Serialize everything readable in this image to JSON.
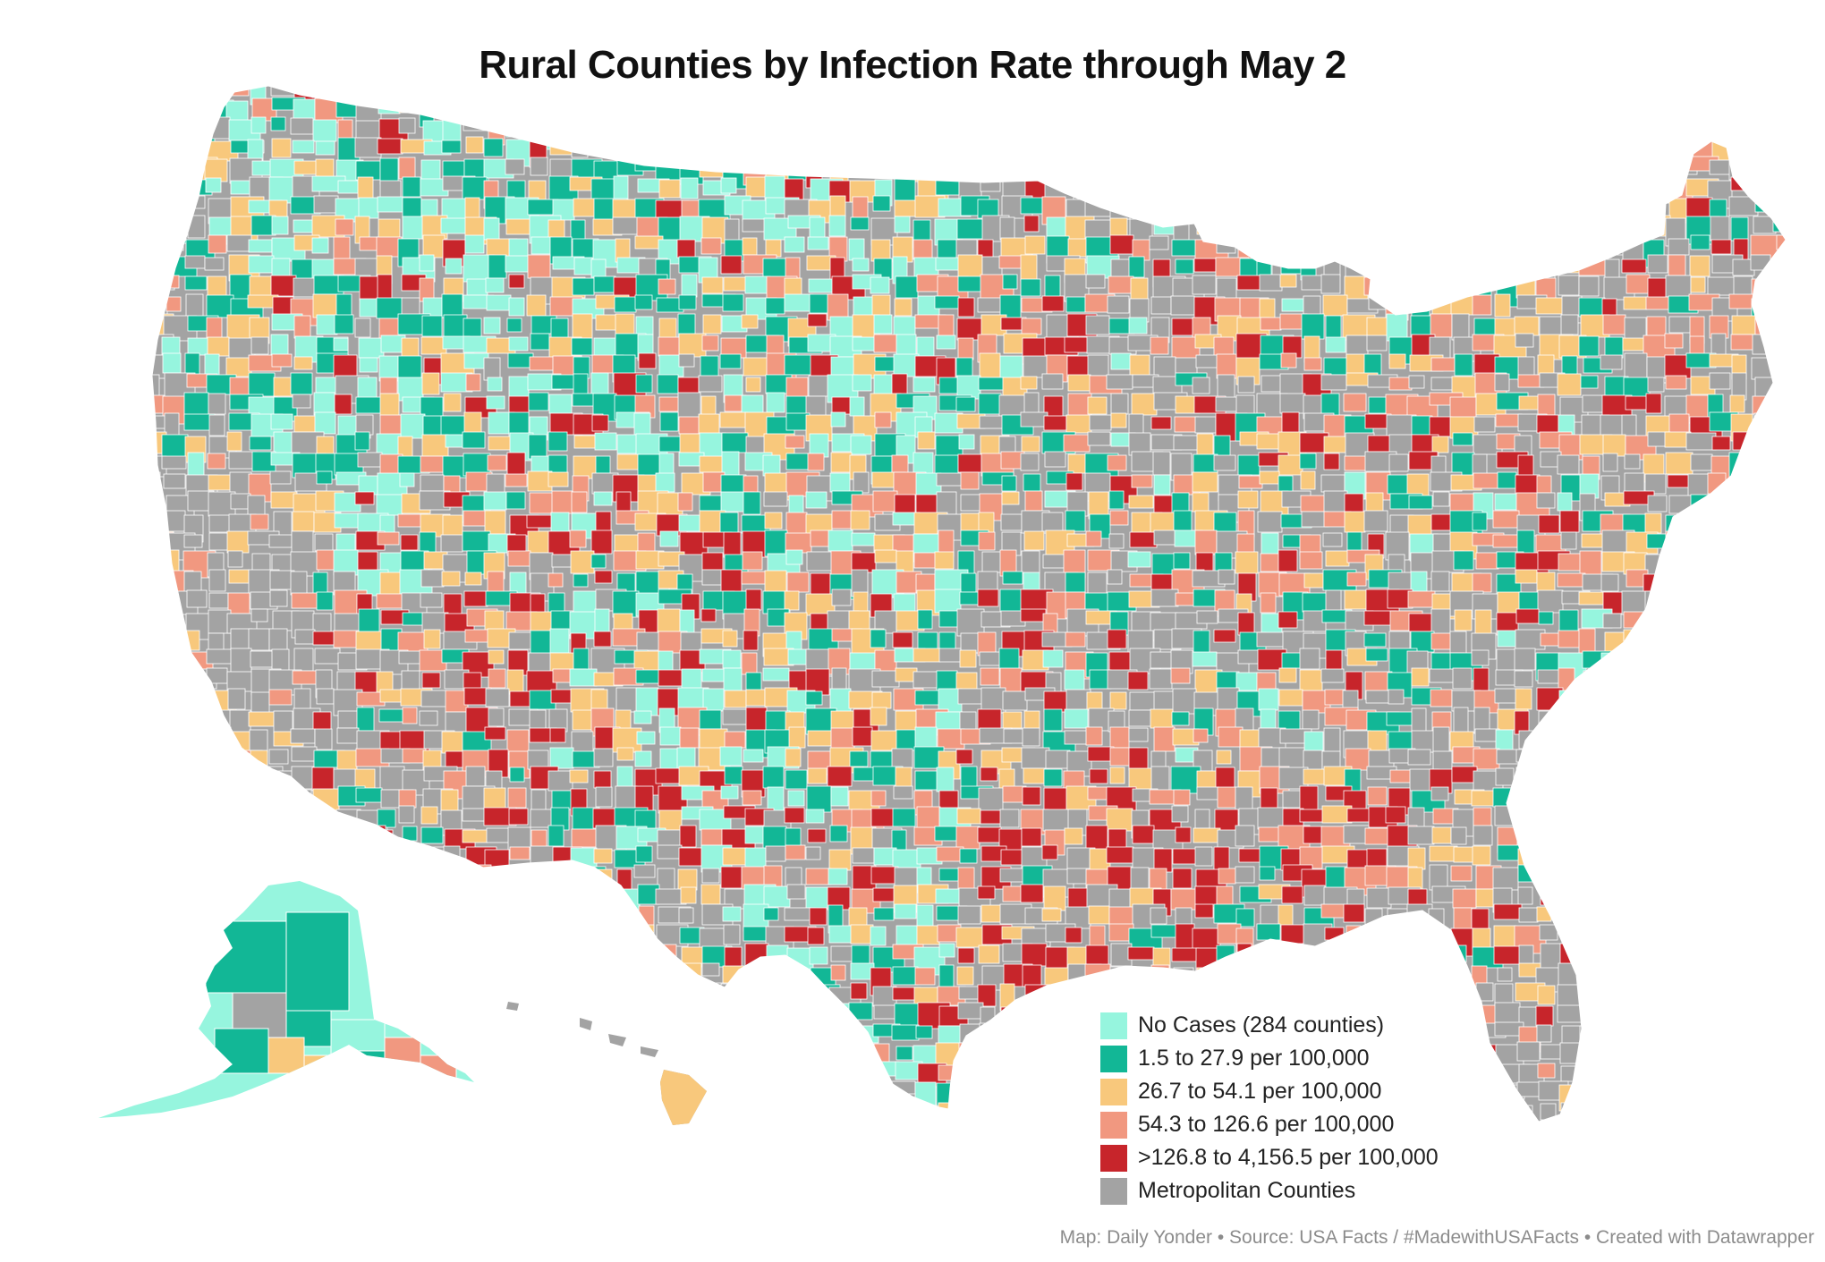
{
  "title": "Rural Counties by Infection Rate through May 2",
  "legend": [
    {
      "label": "No Cases (284 counties)",
      "color": "#96f5de"
    },
    {
      "label": "1.5 to 27.9 per 100,000",
      "color": "#12b796"
    },
    {
      "label": "26.7 to 54.1 per 100,000",
      "color": "#f8c87c"
    },
    {
      "label": "54.3 to 126.6 per 100,000",
      "color": "#f19880"
    },
    {
      "label": ">126.8 to 4,156.5 per 100,000",
      "color": "#c7252b"
    },
    {
      "label": "Metropolitan Counties",
      "color": "#a3a3a3"
    }
  ],
  "credit": "Map: Daily Yonder • Source: USA Facts / #MadewithUSAFacts • Created with Datawrapper",
  "map": {
    "regions": [
      "contiguous-us",
      "alaska",
      "hawaii"
    ],
    "background_color": "#ffffff",
    "border_color": "#ffffff"
  }
}
